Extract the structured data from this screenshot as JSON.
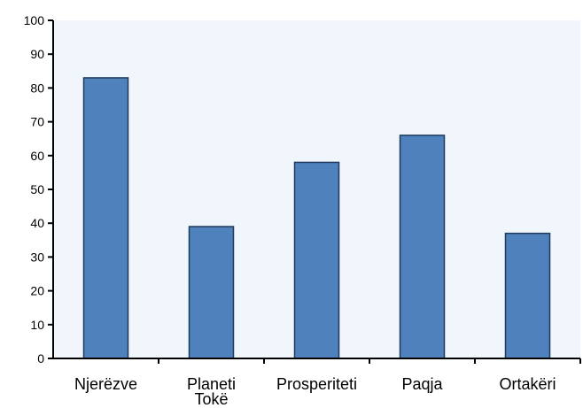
{
  "chart_data": {
    "type": "bar",
    "categories": [
      "Njerëzve",
      "Planeti Tokë",
      "Prosperiteti",
      "Paqja",
      "Ortakëri"
    ],
    "category_lines": [
      [
        "Njerëzve"
      ],
      [
        "Planeti",
        "Tokë"
      ],
      [
        "Prosperiteti"
      ],
      [
        "Paqja"
      ],
      [
        "Ortakëri"
      ]
    ],
    "values": [
      83,
      39,
      58,
      66,
      37
    ],
    "title": "",
    "xlabel": "",
    "ylabel": "",
    "ylim": [
      0,
      100
    ],
    "yticks": [
      "0",
      "10",
      "20",
      "30",
      "40",
      "50",
      "60",
      "70",
      "80",
      "90",
      "100"
    ],
    "grid": false,
    "legend": "none",
    "colors": {
      "plot_background": "#f0f6fc",
      "bar_fill": "#4f81bd",
      "bar_stroke": "#1f3a5c",
      "axis": "#000000"
    }
  }
}
